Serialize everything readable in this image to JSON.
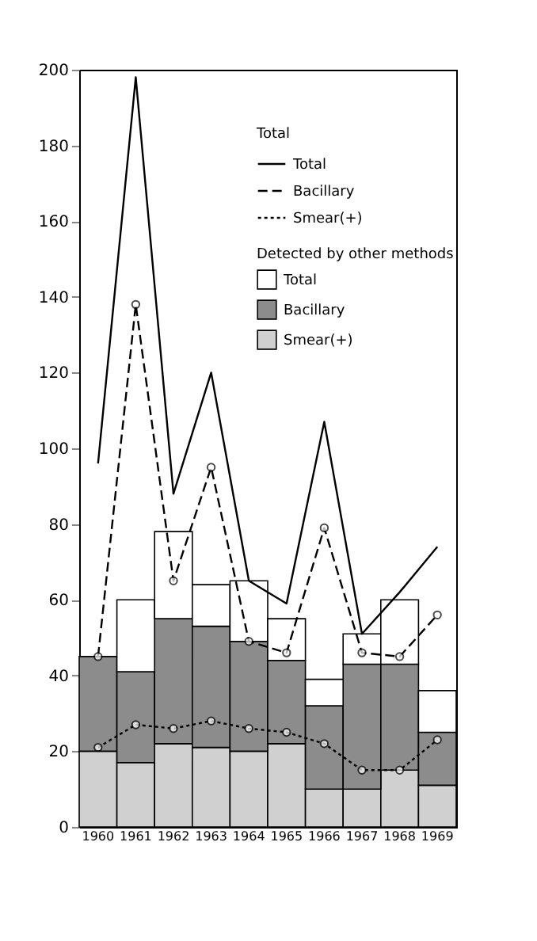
{
  "chart_data": {
    "type": "bar",
    "stacked": true,
    "categories": [
      "1960",
      "1961",
      "1962",
      "1963",
      "1964",
      "1965",
      "1966",
      "1967",
      "1968",
      "1969"
    ],
    "ylim": [
      0,
      200
    ],
    "yticks": [
      0,
      20,
      40,
      60,
      80,
      100,
      120,
      140,
      160,
      180,
      200
    ],
    "legend": "top right",
    "annotations": [
      "Total",
      "Detected by other methods"
    ],
    "series": [
      {
        "name": "Smear(+)",
        "type": "bar",
        "color": "#d0d0d0",
        "values": [
          20,
          17,
          22,
          21,
          20,
          22,
          10,
          10,
          15,
          11
        ]
      },
      {
        "name": "Bacillary",
        "type": "bar",
        "color": "#8c8c8c",
        "values": [
          25,
          24,
          33,
          32,
          29,
          22,
          22,
          33,
          28,
          14
        ]
      },
      {
        "name": "Total",
        "type": "bar",
        "color": "#ffffff",
        "values": [
          null,
          19,
          23,
          11,
          16,
          11,
          7,
          8,
          17,
          11
        ]
      },
      {
        "name": "Total",
        "type": "line",
        "color": "#000000",
        "line_style": "solid",
        "marker": "none",
        "values": [
          96,
          198,
          88,
          120,
          65,
          59,
          107,
          51,
          62,
          74
        ]
      },
      {
        "name": "Bacillary",
        "type": "line",
        "color": "#000000",
        "line_style": "dashed",
        "marker": "circle",
        "values": [
          45,
          138,
          65,
          95,
          49,
          46,
          79,
          46,
          45,
          56
        ]
      },
      {
        "name": "Smear(+)",
        "type": "line",
        "color": "#000000",
        "line_style": "dotted",
        "marker": "circle",
        "values": [
          21,
          27,
          26,
          28,
          26,
          25,
          22,
          15,
          15,
          23
        ]
      }
    ]
  }
}
